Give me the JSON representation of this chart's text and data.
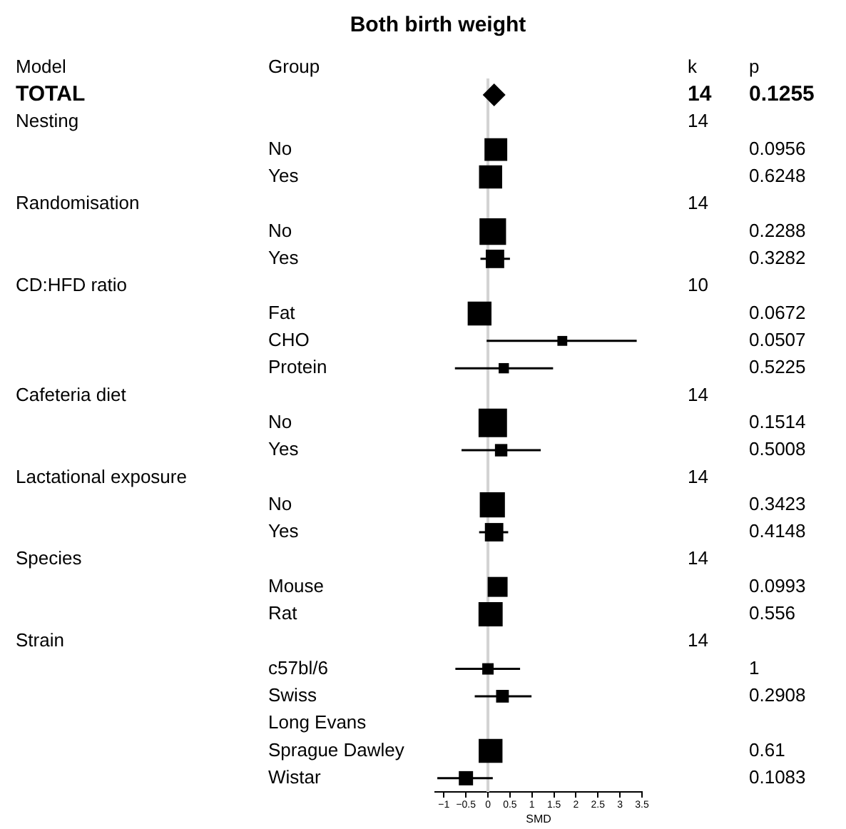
{
  "chart_data": {
    "type": "scatter",
    "orientation": "horizontal",
    "title": "Both birth weight",
    "xlabel": "SMD",
    "annotations": [
      "Model",
      "Group",
      "k",
      "p",
      "TOTAL",
      "14",
      "Nesting",
      "14",
      "Randomisation",
      "14",
      "CD:HFD ratio",
      "10",
      "Cafeteria diet",
      "14",
      "Lactational exposure",
      "14",
      "Species",
      "14",
      "Strain",
      "14"
    ],
    "categories": [
      null,
      null,
      "No",
      "Yes",
      null,
      "No",
      "Yes",
      null,
      "Fat",
      "CHO",
      "Protein",
      null,
      "No",
      "Yes",
      null,
      "No",
      "Yes",
      null,
      "Mouse",
      "Rat",
      null,
      "c57bl/6",
      "Swiss",
      "Long Evans",
      "Sprague Dawley",
      "Wistar"
    ],
    "y2_categories": [
      "0.1255",
      null,
      "0.0956",
      "0.6248",
      null,
      "0.2288",
      "0.3282",
      null,
      "0.0672",
      "0.0507",
      "0.5225",
      null,
      "0.1514",
      "0.5008",
      null,
      "0.3423",
      "0.4148",
      null,
      "0.0993",
      "0.556",
      null,
      "1",
      "0.2908",
      null,
      "0.61",
      "0.1083"
    ],
    "series": [
      {
        "marker": "diamond",
        "color": "#000000",
        "values": [
          0.14,
          null,
          null,
          null,
          null,
          null,
          null,
          null,
          null,
          null,
          null,
          null,
          null,
          null,
          null,
          null,
          null,
          null,
          null,
          null,
          null,
          null,
          null,
          null,
          null,
          null
        ]
      },
      {
        "marker": "square",
        "color": "#000000",
        "values": [
          null,
          null,
          0.18,
          0.06,
          null,
          0.11,
          0.16,
          null,
          -0.19,
          1.69,
          0.36,
          null,
          0.11,
          0.3,
          null,
          0.1,
          0.14,
          null,
          0.22,
          0.06,
          null,
          0.0,
          0.33,
          null,
          0.06,
          -0.5
        ],
        "sizes": [
          null,
          null,
          0.64,
          0.66,
          null,
          0.87,
          0.42,
          null,
          0.7,
          0.12,
          0.13,
          null,
          1,
          0.19,
          null,
          0.78,
          0.42,
          null,
          0.49,
          0.72,
          null,
          0.16,
          0.2,
          null,
          0.7,
          0.25
        ],
        "errors": [
          null,
          null,
          null,
          null,
          null,
          null,
          [
            -0.17,
            0.5
          ],
          null,
          null,
          [
            -0.03,
            3.38
          ],
          [
            -0.75,
            1.48
          ],
          null,
          null,
          [
            -0.6,
            1.2
          ],
          null,
          null,
          [
            -0.2,
            0.46
          ],
          null,
          null,
          null,
          null,
          [
            -0.74,
            0.73
          ],
          [
            -0.3,
            0.99
          ],
          null,
          null,
          [
            -1.15,
            0.11
          ]
        ]
      }
    ],
    "xlim": [
      -1.2,
      3.5
    ],
    "xticks": [
      {
        "value": -1,
        "label": "−1"
      },
      {
        "value": -0.5,
        "label": "−0.5"
      },
      0,
      0.5,
      1,
      1.5,
      2,
      2.5,
      3,
      3.5
    ],
    "ref_lines": [
      {
        "axis": "x",
        "value": 0,
        "color": "#d3d3d3"
      }
    ],
    "legend": false
  }
}
